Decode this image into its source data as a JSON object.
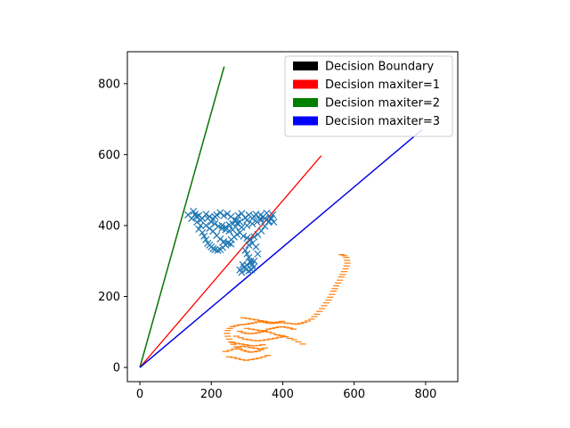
{
  "chart_data": {
    "type": "scatter",
    "xlim": [
      -35,
      890
    ],
    "ylim": [
      -40,
      890
    ],
    "x_ticks": [
      0,
      200,
      400,
      600,
      800
    ],
    "y_ticks": [
      0,
      200,
      400,
      600,
      800
    ],
    "grid": false,
    "legend_placement": "top-right",
    "legend": [
      {
        "label": "Decision Boundary",
        "color": "#000000"
      },
      {
        "label": "Decision maxiter=1",
        "color": "#ff0000"
      },
      {
        "label": "Decision maxiter=2",
        "color": "#008000"
      },
      {
        "label": "Decision maxiter=3",
        "color": "#0000ff"
      }
    ],
    "lines": [
      {
        "color": "#000000",
        "x": [
          0,
          236
        ],
        "y": [
          0,
          848
        ]
      },
      {
        "color": "#008000",
        "x": [
          0,
          236
        ],
        "y": [
          0,
          848
        ]
      },
      {
        "color": "#ff0000",
        "x": [
          0,
          508
        ],
        "y": [
          0,
          597
        ]
      },
      {
        "color": "#000000",
        "x": [
          0,
          790
        ],
        "y": [
          0,
          670
        ]
      },
      {
        "color": "#0000ff",
        "x": [
          0,
          790
        ],
        "y": [
          0,
          670
        ]
      }
    ],
    "scatter_series": [
      {
        "marker": "x",
        "color": "#1f77b4",
        "points": [
          [
            135,
            430
          ],
          [
            145,
            420
          ],
          [
            155,
            432
          ],
          [
            165,
            428
          ],
          [
            175,
            420
          ],
          [
            185,
            432
          ],
          [
            195,
            425
          ],
          [
            205,
            418
          ],
          [
            215,
            430
          ],
          [
            225,
            436
          ],
          [
            235,
            428
          ],
          [
            245,
            433
          ],
          [
            255,
            425
          ],
          [
            265,
            415
          ],
          [
            275,
            428
          ],
          [
            285,
            434
          ],
          [
            295,
            422
          ],
          [
            305,
            430
          ],
          [
            315,
            420
          ],
          [
            325,
            432
          ],
          [
            335,
            418
          ],
          [
            345,
            425
          ],
          [
            355,
            435
          ],
          [
            365,
            420
          ],
          [
            375,
            410
          ],
          [
            160,
            410
          ],
          [
            170,
            400
          ],
          [
            165,
            390
          ],
          [
            175,
            380
          ],
          [
            180,
            370
          ],
          [
            185,
            360
          ],
          [
            190,
            350
          ],
          [
            195,
            345
          ],
          [
            200,
            340
          ],
          [
            205,
            335
          ],
          [
            210,
            332
          ],
          [
            218,
            330
          ],
          [
            225,
            332
          ],
          [
            232,
            338
          ],
          [
            240,
            345
          ],
          [
            248,
            352
          ],
          [
            256,
            360
          ],
          [
            264,
            368
          ],
          [
            272,
            375
          ],
          [
            280,
            380
          ],
          [
            200,
            410
          ],
          [
            210,
            405
          ],
          [
            220,
            398
          ],
          [
            230,
            392
          ],
          [
            240,
            388
          ],
          [
            250,
            385
          ],
          [
            260,
            388
          ],
          [
            268,
            396
          ],
          [
            272,
            406
          ],
          [
            270,
            414
          ],
          [
            185,
            400
          ],
          [
            195,
            392
          ],
          [
            205,
            384
          ],
          [
            215,
            372
          ],
          [
            225,
            362
          ],
          [
            235,
            355
          ],
          [
            245,
            350
          ],
          [
            255,
            348
          ],
          [
            290,
            370
          ],
          [
            300,
            365
          ],
          [
            310,
            360
          ],
          [
            320,
            368
          ],
          [
            330,
            375
          ],
          [
            340,
            385
          ],
          [
            350,
            398
          ],
          [
            360,
            410
          ],
          [
            368,
            420
          ],
          [
            372,
            430
          ],
          [
            295,
            330
          ],
          [
            300,
            320
          ],
          [
            305,
            310
          ],
          [
            310,
            300
          ],
          [
            315,
            290
          ],
          [
            318,
            282
          ],
          [
            312,
            275
          ],
          [
            305,
            272
          ],
          [
            298,
            276
          ],
          [
            292,
            282
          ],
          [
            288,
            290
          ],
          [
            280,
            275
          ],
          [
            285,
            268
          ],
          [
            300,
            288
          ],
          [
            310,
            295
          ],
          [
            320,
            300
          ],
          [
            330,
            320
          ],
          [
            325,
            340
          ],
          [
            315,
            350
          ],
          [
            305,
            345
          ],
          [
            230,
            400
          ],
          [
            240,
            395
          ],
          [
            250,
            402
          ],
          [
            285,
            395
          ],
          [
            300,
            400
          ],
          [
            315,
            405
          ],
          [
            328,
            410
          ],
          [
            340,
            416
          ],
          [
            350,
            420
          ],
          [
            362,
            412
          ],
          [
            150,
            440
          ],
          [
            158,
            425
          ],
          [
            170,
            415
          ],
          [
            190,
            420
          ],
          [
            210,
            425
          ],
          [
            260,
            405
          ],
          [
            280,
            410
          ],
          [
            300,
            415
          ],
          [
            320,
            425
          ],
          [
            338,
            430
          ]
        ]
      },
      {
        "marker": "_",
        "color": "#ff7f0e",
        "points": [
          [
            565,
            318
          ],
          [
            572,
            315
          ],
          [
            578,
            310
          ],
          [
            580,
            302
          ],
          [
            581,
            294
          ],
          [
            579,
            286
          ],
          [
            576,
            278
          ],
          [
            572,
            270
          ],
          [
            568,
            262
          ],
          [
            564,
            255
          ],
          [
            560,
            246
          ],
          [
            555,
            238
          ],
          [
            550,
            230
          ],
          [
            546,
            222
          ],
          [
            542,
            215
          ],
          [
            538,
            206
          ],
          [
            533,
            198
          ],
          [
            528,
            190
          ],
          [
            522,
            182
          ],
          [
            516,
            174
          ],
          [
            510,
            166
          ],
          [
            503,
            158
          ],
          [
            496,
            150
          ],
          [
            488,
            143
          ],
          [
            480,
            136
          ],
          [
            470,
            131
          ],
          [
            460,
            127
          ],
          [
            450,
            124
          ],
          [
            440,
            122
          ],
          [
            430,
            123
          ],
          [
            420,
            124
          ],
          [
            410,
            125
          ],
          [
            400,
            126
          ],
          [
            390,
            126
          ],
          [
            380,
            125
          ],
          [
            370,
            124
          ],
          [
            360,
            125
          ],
          [
            350,
            127
          ],
          [
            340,
            130
          ],
          [
            330,
            128
          ],
          [
            320,
            126
          ],
          [
            310,
            124
          ],
          [
            300,
            122
          ],
          [
            290,
            121
          ],
          [
            280,
            120
          ],
          [
            270,
            118
          ],
          [
            260,
            115
          ],
          [
            252,
            110
          ],
          [
            246,
            104
          ],
          [
            244,
            96
          ],
          [
            246,
            88
          ],
          [
            250,
            80
          ],
          [
            256,
            72
          ],
          [
            262,
            65
          ],
          [
            270,
            58
          ],
          [
            280,
            52
          ],
          [
            290,
            48
          ],
          [
            300,
            45
          ],
          [
            310,
            43
          ],
          [
            320,
            44
          ],
          [
            330,
            46
          ],
          [
            340,
            50
          ],
          [
            350,
            55
          ],
          [
            280,
            102
          ],
          [
            290,
            98
          ],
          [
            300,
            96
          ],
          [
            310,
            95
          ],
          [
            320,
            96
          ],
          [
            330,
            98
          ],
          [
            340,
            100
          ],
          [
            350,
            104
          ],
          [
            360,
            108
          ],
          [
            370,
            110
          ],
          [
            380,
            112
          ],
          [
            390,
            114
          ],
          [
            400,
            115
          ],
          [
            410,
            113
          ],
          [
            420,
            111
          ],
          [
            430,
            108
          ],
          [
            270,
            88
          ],
          [
            282,
            84
          ],
          [
            294,
            80
          ],
          [
            306,
            78
          ],
          [
            318,
            76
          ],
          [
            330,
            75
          ],
          [
            342,
            76
          ],
          [
            354,
            78
          ],
          [
            366,
            80
          ],
          [
            378,
            82
          ],
          [
            390,
            85
          ],
          [
            402,
            88
          ],
          [
            260,
            70
          ],
          [
            272,
            68
          ],
          [
            284,
            66
          ],
          [
            296,
            64
          ],
          [
            308,
            62
          ],
          [
            320,
            61
          ],
          [
            332,
            62
          ],
          [
            344,
            64
          ],
          [
            250,
            30
          ],
          [
            262,
            28
          ],
          [
            274,
            25
          ],
          [
            286,
            22
          ],
          [
            298,
            20
          ],
          [
            310,
            22
          ],
          [
            322,
            24
          ],
          [
            334,
            26
          ],
          [
            346,
            30
          ],
          [
            358,
            34
          ],
          [
            240,
            45
          ],
          [
            252,
            48
          ],
          [
            264,
            52
          ],
          [
            276,
            56
          ],
          [
            288,
            60
          ],
          [
            300,
            58
          ],
          [
            312,
            56
          ],
          [
            324,
            54
          ],
          [
            336,
            52
          ],
          [
            290,
            140
          ],
          [
            302,
            138
          ],
          [
            314,
            136
          ],
          [
            326,
            134
          ],
          [
            338,
            132
          ],
          [
            350,
            130
          ],
          [
            362,
            128
          ],
          [
            374,
            127
          ],
          [
            386,
            128
          ],
          [
            398,
            130
          ],
          [
            300,
            110
          ],
          [
            312,
            108
          ],
          [
            324,
            106
          ],
          [
            336,
            104
          ],
          [
            348,
            102
          ],
          [
            360,
            100
          ],
          [
            372,
            96
          ],
          [
            384,
            92
          ],
          [
            396,
            90
          ],
          [
            408,
            86
          ],
          [
            420,
            82
          ],
          [
            432,
            78
          ],
          [
            444,
            72
          ],
          [
            456,
            66
          ]
        ]
      }
    ]
  }
}
